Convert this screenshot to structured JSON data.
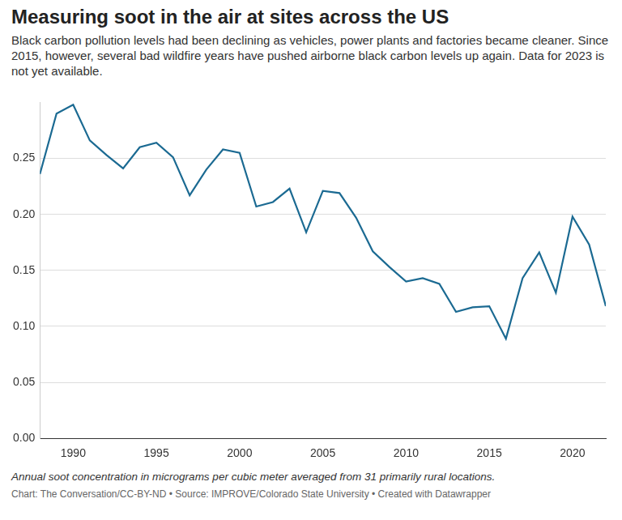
{
  "chart_data": {
    "type": "line",
    "title": "Measuring soot in the air at sites across the US",
    "subtitle": "Black carbon pollution levels had been declining as vehicles, power plants and factories became cleaner. Since 2015, however, several bad wildfire years have pushed airborne black carbon levels up again. Data for 2023 is not yet available.",
    "note": "Annual soot concentration in micrograms per cubic meter averaged from 31 primarily rural locations.",
    "source": "Chart: The Conversation/CC-BY-ND • Source: IMPROVE/Colorado State University • Created with Datawrapper",
    "x": [
      1988,
      1989,
      1990,
      1991,
      1992,
      1993,
      1994,
      1995,
      1996,
      1997,
      1998,
      1999,
      2000,
      2001,
      2002,
      2003,
      2004,
      2005,
      2006,
      2007,
      2008,
      2009,
      2010,
      2011,
      2012,
      2013,
      2014,
      2015,
      2016,
      2017,
      2018,
      2019,
      2020,
      2021,
      2022
    ],
    "values": [
      0.236,
      0.29,
      0.298,
      0.266,
      0.253,
      0.241,
      0.26,
      0.264,
      0.251,
      0.217,
      0.24,
      0.258,
      0.255,
      0.207,
      0.211,
      0.223,
      0.184,
      0.221,
      0.219,
      0.197,
      0.167,
      0.153,
      0.14,
      0.143,
      0.138,
      0.113,
      0.117,
      0.118,
      0.089,
      0.143,
      0.166,
      0.13,
      0.198,
      0.173,
      0.118
    ],
    "color": "#1b6a92",
    "xlim": [
      1988,
      2022
    ],
    "xticks": [
      1990,
      1995,
      2000,
      2005,
      2010,
      2015,
      2020
    ],
    "ylim": [
      0,
      0.3
    ],
    "yticks": [
      {
        "value": 0,
        "label": "0.00"
      },
      0.05,
      {
        "value": 0.1,
        "label": "0.10"
      },
      0.15,
      {
        "value": 0.2,
        "label": "0.20"
      },
      0.25
    ],
    "grid": true
  }
}
